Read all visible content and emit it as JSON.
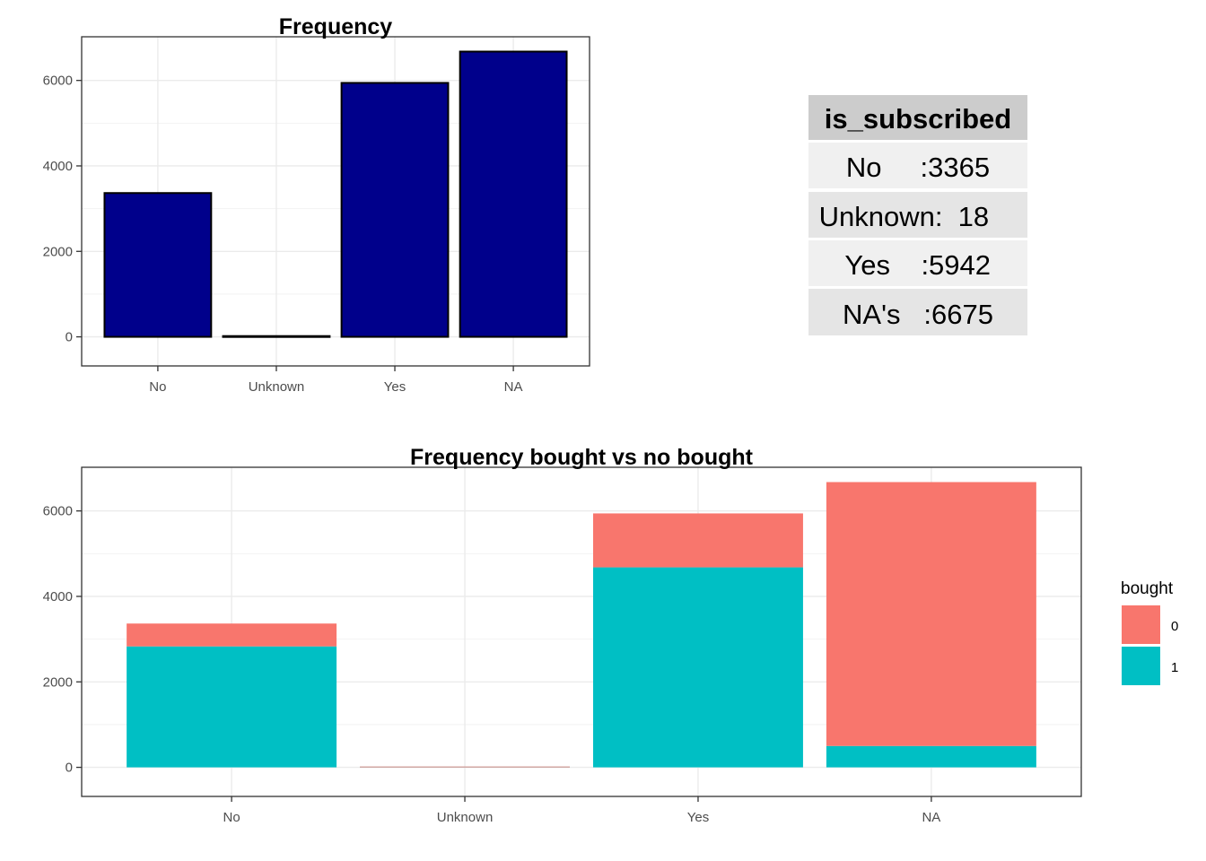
{
  "chart_data": [
    {
      "type": "bar",
      "title": "Frequency",
      "categories": [
        "No",
        "Unknown",
        "Yes",
        "NA"
      ],
      "values": [
        3365,
        18,
        5942,
        6675
      ],
      "yticks": [
        0,
        2000,
        4000,
        6000
      ],
      "ylim": [
        -334,
        6675
      ],
      "grid": true,
      "colors": {
        "fill": "#00008B",
        "outline": "#000000"
      }
    },
    {
      "type": "bar",
      "stacked": true,
      "title": "Frequency bought vs no bought",
      "categories": [
        "No",
        "Unknown",
        "Yes",
        "NA"
      ],
      "series": [
        {
          "name": "1",
          "values": [
            2830,
            15,
            4680,
            500
          ],
          "color": "#00BFC4"
        },
        {
          "name": "0",
          "values": [
            535,
            3,
            1262,
            6175
          ],
          "color": "#F8766D"
        }
      ],
      "yticks": [
        0,
        2000,
        4000,
        6000
      ],
      "ylim": [
        -334,
        6675
      ],
      "grid": true,
      "legend": {
        "title": "bought",
        "entries": [
          {
            "label": "0",
            "color": "#F8766D"
          },
          {
            "label": "1",
            "color": "#00BFC4"
          }
        ],
        "position": "right"
      }
    }
  ],
  "summary_table": {
    "header": "is_subscribed",
    "rows": [
      "  No     :3365  ",
      "Unknown:  18  ",
      "  Yes    :5942  ",
      "  NA's   :6675  "
    ],
    "colors": {
      "header_bg": "#CCCCCC",
      "row_odd": "#F0F0F0",
      "row_even": "#E5E5E5"
    }
  }
}
